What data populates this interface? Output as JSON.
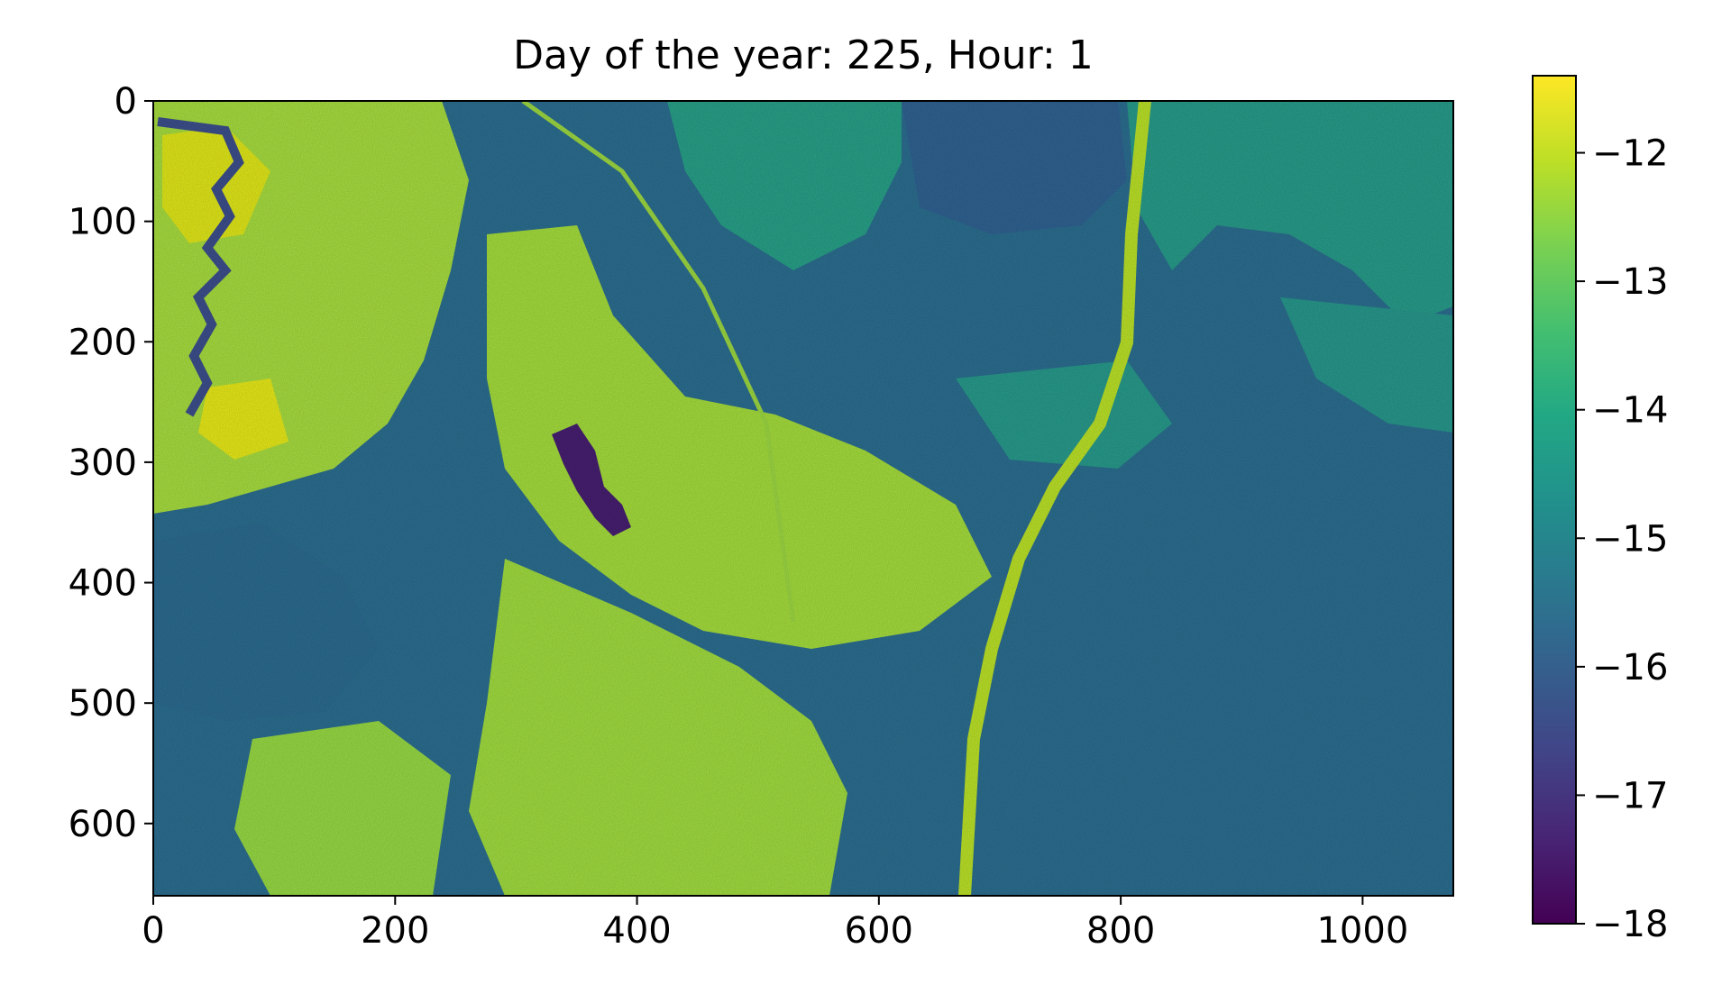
{
  "chart_data": {
    "type": "heatmap",
    "title": "Day of the year: 225, Hour: 1",
    "xlabel": "",
    "ylabel": "",
    "colormap": "viridis",
    "image_shape": {
      "rows": 660,
      "cols": 1075
    },
    "x_range": [
      0,
      1075
    ],
    "y_range": [
      660,
      0
    ],
    "x_ticks": [
      0,
      200,
      400,
      600,
      800,
      1000
    ],
    "y_ticks": [
      0,
      100,
      200,
      300,
      400,
      500,
      600
    ],
    "colorbar": {
      "range": [
        -18,
        -11.4
      ],
      "ticks": [
        -18,
        -17,
        -16,
        -15,
        -14,
        -13,
        -12
      ],
      "tick_labels": [
        "−18",
        "−17",
        "−16",
        "−15",
        "−14",
        "−13",
        "−12"
      ]
    },
    "regions": [
      {
        "name": "background",
        "value": -15.4
      },
      {
        "name": "west-bright-land",
        "value": -12.7
      },
      {
        "name": "central-bright-plateau",
        "value": -12.6
      },
      {
        "name": "south-bright-land",
        "value": -12.8
      },
      {
        "name": "east-medium-fields",
        "value": -14.2
      },
      {
        "name": "northeast-dark-forest",
        "value": -15.7
      },
      {
        "name": "dark-lake",
        "value": -17.2
      },
      {
        "name": "west-river",
        "value": -16.4
      }
    ]
  }
}
